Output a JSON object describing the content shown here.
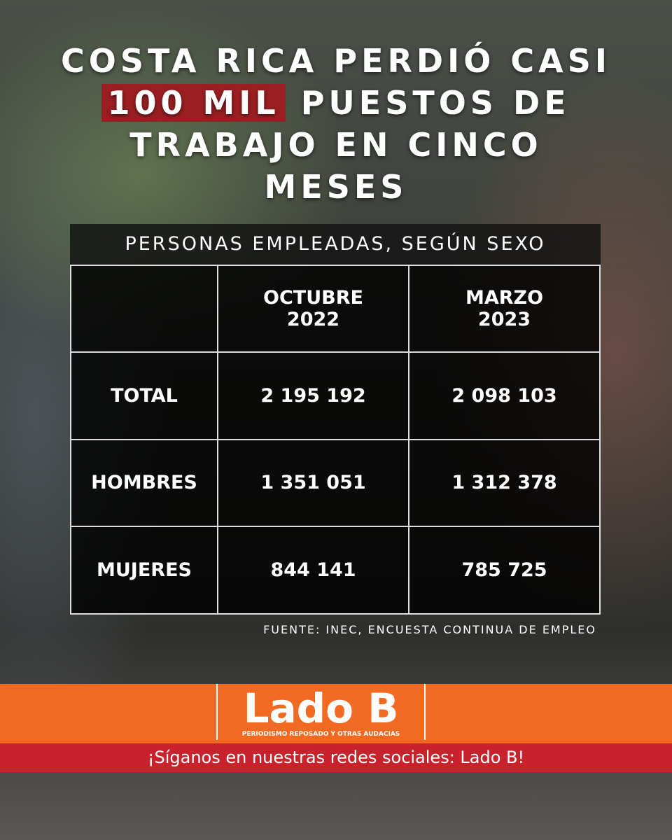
{
  "title": {
    "line1": "COSTA RICA PERDIÓ CASI",
    "highlight": "100 MIL",
    "line2_rest": "PUESTOS DE",
    "line3": "TRABAJO EN CINCO",
    "line4": "MESES"
  },
  "table": {
    "caption": "PERSONAS EMPLEADAS, SEGÚN SEXO",
    "columns": [
      [
        "OCTUBRE",
        "2022"
      ],
      [
        "MARZO",
        "2023"
      ]
    ],
    "rows": [
      [
        "TOTAL",
        "2 195 192",
        "2 098 103"
      ],
      [
        "HOMBRES",
        "1 351 051",
        "1 312 378"
      ],
      [
        "MUJERES",
        "844 141",
        "785 725"
      ]
    ]
  },
  "source": "FUENTE: INEC, ENCUESTA CONTINUA DE EMPLEO",
  "brand": {
    "name": "Lado B",
    "tagline": "PERIODISMO REPOSADO Y OTRAS AUDACIAS"
  },
  "footer": "¡Síganos en nuestras redes sociales: Lado B!"
}
